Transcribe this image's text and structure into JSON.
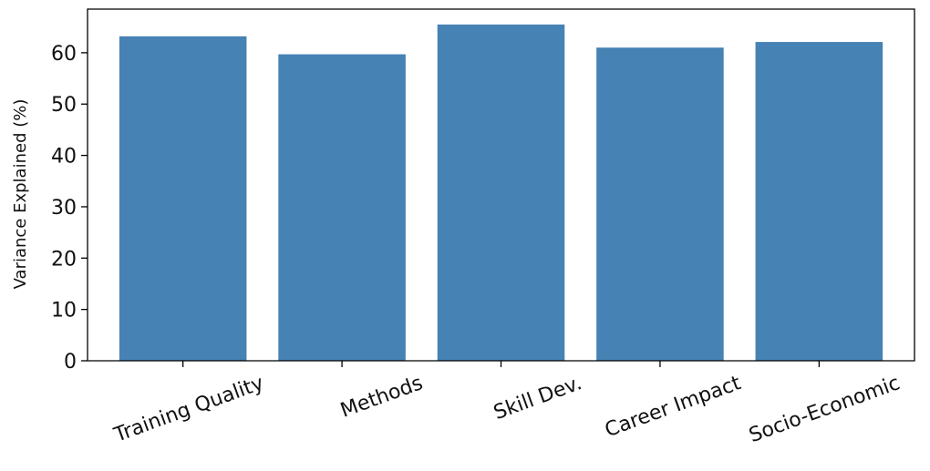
{
  "chart_data": {
    "type": "bar",
    "title": "",
    "xlabel": "",
    "ylabel": "Variance Explained (%)",
    "categories": [
      "Training Quality",
      "Methods",
      "Skill Dev.",
      "Career Impact",
      "Socio-Economic"
    ],
    "values": [
      63.2,
      59.7,
      65.5,
      61.0,
      62.1
    ],
    "ylim": [
      0,
      68.5
    ],
    "yticks": [
      0,
      10,
      20,
      30,
      40,
      50,
      60
    ],
    "grid": false,
    "legend": "none",
    "bar_color": "#4682b4"
  }
}
